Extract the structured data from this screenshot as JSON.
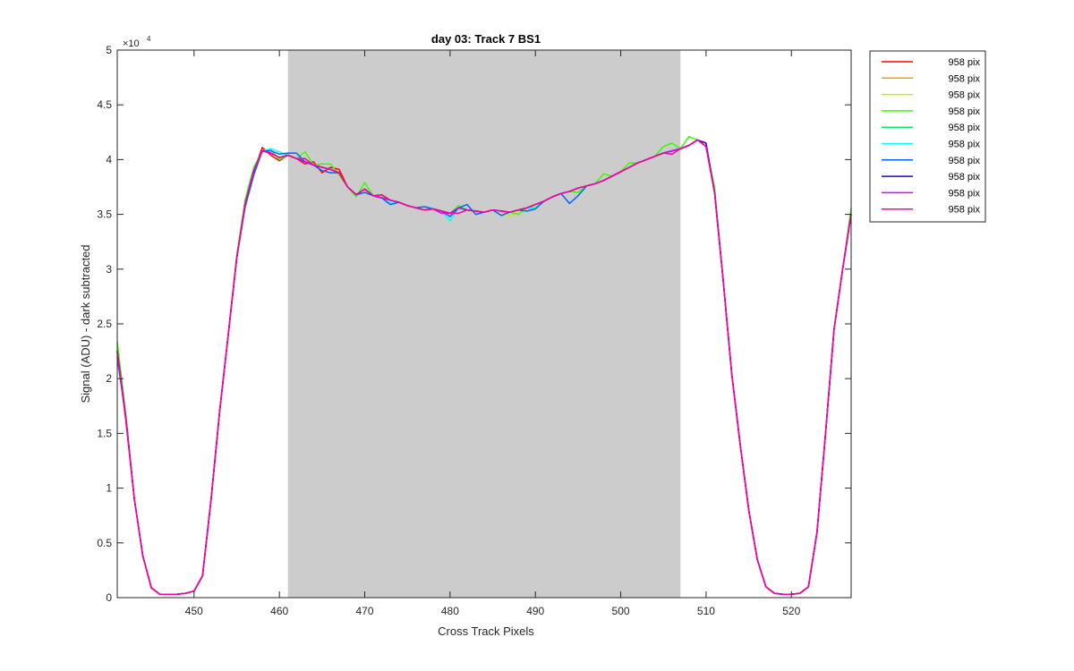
{
  "chart_data": {
    "type": "line",
    "title": "day 03: Track 7  BS1",
    "xlabel": "Cross Track Pixels",
    "ylabel": "Signal (ADU) - dark subtracted",
    "y_exponent_label": "×10",
    "y_exponent_power": "4",
    "xlim": [
      441,
      527
    ],
    "ylim": [
      0,
      50000
    ],
    "x_ticks": [
      450,
      460,
      470,
      480,
      490,
      500,
      510,
      520
    ],
    "y_ticks": [
      0,
      5000,
      10000,
      15000,
      20000,
      25000,
      30000,
      35000,
      40000,
      45000,
      50000
    ],
    "y_tick_labels": [
      "0",
      "0.5",
      "1",
      "1.5",
      "2",
      "2.5",
      "3",
      "3.5",
      "4",
      "4.5",
      "5"
    ],
    "shaded_region": {
      "x": [
        461,
        507
      ],
      "color": "#cccccc"
    },
    "grid": false,
    "legend_position": "outside-top-right",
    "x": [
      441,
      442,
      443,
      444,
      445,
      446,
      447,
      448,
      449,
      450,
      451,
      452,
      453,
      454,
      455,
      456,
      457,
      458,
      459,
      460,
      461,
      462,
      463,
      464,
      465,
      466,
      467,
      468,
      469,
      470,
      471,
      472,
      473,
      474,
      475,
      476,
      477,
      478,
      479,
      480,
      481,
      482,
      483,
      484,
      485,
      486,
      487,
      488,
      489,
      490,
      491,
      492,
      493,
      494,
      495,
      496,
      497,
      498,
      499,
      500,
      501,
      502,
      503,
      504,
      505,
      506,
      507,
      508,
      509,
      510,
      511,
      512,
      513,
      514,
      515,
      516,
      517,
      518,
      519,
      520,
      521,
      522,
      523,
      524,
      525,
      526,
      527
    ],
    "base": [
      22500,
      16500,
      9000,
      3800,
      900,
      300,
      300,
      300,
      400,
      600,
      2000,
      9000,
      17000,
      24000,
      31000,
      36000,
      39000,
      40800,
      40600,
      40200,
      40400,
      40100,
      39800,
      39500,
      39300,
      39100,
      38800,
      37500,
      36800,
      37300,
      36700,
      36500,
      36300,
      36100,
      35800,
      35600,
      35400,
      35500,
      35300,
      35100,
      35600,
      35400,
      35300,
      35200,
      35400,
      35300,
      35200,
      35400,
      35600,
      35900,
      36200,
      36600,
      36900,
      37100,
      37400,
      37600,
      37800,
      38100,
      38500,
      38900,
      39300,
      39700,
      40000,
      40300,
      40600,
      40800,
      41000,
      41300,
      41800,
      41200,
      37000,
      29000,
      20500,
      14000,
      8000,
      3500,
      1000,
      400,
      300,
      300,
      400,
      1000,
      6000,
      15000,
      24500,
      30000,
      35000
    ],
    "series": [
      {
        "name": "958 pix",
        "color": "#ff0000",
        "noise": [
          0,
          -300,
          0,
          0,
          0,
          0,
          0,
          0,
          0,
          0,
          0,
          0,
          0,
          0,
          0,
          0,
          0,
          300,
          -200,
          -300,
          0,
          0,
          -200,
          300,
          -500,
          200,
          300,
          0,
          0,
          0,
          0,
          0,
          0,
          0,
          0,
          0,
          0,
          0,
          0,
          0,
          0,
          0,
          0,
          0,
          0,
          0,
          0,
          0,
          0,
          0,
          0,
          0,
          0,
          0,
          0,
          0,
          0,
          0,
          0,
          0,
          0,
          0,
          0,
          0,
          0,
          0,
          0,
          0,
          0,
          0,
          0,
          0,
          0,
          0,
          0,
          0,
          0,
          0,
          0,
          0,
          0,
          0,
          0,
          0,
          0,
          0,
          0
        ]
      },
      {
        "name": "958 pix",
        "color": "#ff9900",
        "noise": [
          0,
          0,
          0,
          0,
          0,
          0,
          0,
          0,
          0,
          0,
          0,
          0,
          0,
          0,
          0,
          0,
          0,
          0,
          0,
          0,
          0,
          0,
          0,
          0,
          0,
          0,
          0,
          0,
          0,
          0,
          0,
          0,
          0,
          0,
          0,
          0,
          0,
          0,
          0,
          0,
          0,
          0,
          0,
          0,
          0,
          0,
          0,
          0,
          0,
          0,
          0,
          0,
          0,
          0,
          0,
          0,
          0,
          0,
          0,
          0,
          0,
          0,
          0,
          0,
          0,
          0,
          0,
          0,
          0,
          0,
          0,
          0,
          0,
          0,
          0,
          0,
          0,
          0,
          0,
          0,
          0,
          0,
          0,
          0,
          0,
          0,
          0
        ]
      },
      {
        "name": "958 pix",
        "color": "#ccee00",
        "noise": [
          0,
          0,
          0,
          0,
          0,
          0,
          0,
          0,
          0,
          0,
          0,
          0,
          0,
          0,
          0,
          0,
          0,
          0,
          0,
          0,
          0,
          0,
          0,
          0,
          0,
          0,
          0,
          0,
          0,
          0,
          0,
          0,
          0,
          0,
          0,
          0,
          0,
          0,
          0,
          0,
          0,
          0,
          0,
          0,
          0,
          0,
          -400,
          0,
          0,
          0,
          0,
          0,
          0,
          0,
          0,
          0,
          0,
          0,
          0,
          0,
          0,
          0,
          0,
          0,
          0,
          0,
          0,
          0,
          0,
          0,
          0,
          0,
          0,
          0,
          0,
          0,
          0,
          0,
          0,
          0,
          0,
          0,
          0,
          0,
          0,
          0,
          0
        ]
      },
      {
        "name": "958 pix",
        "color": "#33ff00",
        "noise": [
          900,
          300,
          0,
          0,
          0,
          0,
          0,
          0,
          0,
          0,
          0,
          0,
          0,
          0,
          300,
          400,
          300,
          0,
          300,
          -200,
          0,
          0,
          900,
          0,
          300,
          500,
          -200,
          0,
          -200,
          600,
          0,
          200,
          0,
          0,
          0,
          0,
          0,
          0,
          0,
          0,
          200,
          0,
          0,
          0,
          0,
          0,
          0,
          -400,
          0,
          -300,
          0,
          0,
          0,
          0,
          -400,
          0,
          0,
          600,
          0,
          0,
          400,
          0,
          0,
          0,
          600,
          700,
          0,
          800,
          0,
          0,
          500,
          0,
          0,
          0,
          0,
          0,
          0,
          0,
          0,
          0,
          0,
          0,
          0,
          0,
          0,
          0,
          600
        ]
      },
      {
        "name": "958 pix",
        "color": "#00ee66",
        "noise": [
          0,
          0,
          0,
          0,
          0,
          0,
          0,
          0,
          0,
          0,
          0,
          0,
          0,
          0,
          0,
          0,
          0,
          0,
          0,
          0,
          0,
          0,
          0,
          0,
          0,
          0,
          0,
          0,
          0,
          0,
          0,
          0,
          0,
          0,
          0,
          0,
          0,
          0,
          0,
          0,
          0,
          0,
          0,
          0,
          0,
          0,
          0,
          0,
          0,
          0,
          0,
          0,
          0,
          0,
          0,
          0,
          0,
          0,
          0,
          0,
          0,
          0,
          0,
          0,
          0,
          0,
          0,
          0,
          0,
          0,
          0,
          0,
          0,
          0,
          0,
          0,
          0,
          0,
          0,
          0,
          0,
          0,
          0,
          0,
          0,
          0,
          0
        ]
      },
      {
        "name": "958 pix",
        "color": "#00ffff",
        "noise": [
          0,
          0,
          0,
          0,
          0,
          0,
          0,
          0,
          0,
          0,
          0,
          0,
          0,
          0,
          0,
          0,
          0,
          0,
          400,
          500,
          0,
          0,
          0,
          0,
          0,
          0,
          0,
          0,
          0,
          0,
          0,
          0,
          -300,
          0,
          0,
          0,
          0,
          0,
          0,
          -700,
          0,
          0,
          0,
          0,
          0,
          0,
          0,
          0,
          0,
          -400,
          0,
          0,
          0,
          0,
          0,
          0,
          0,
          0,
          0,
          0,
          0,
          0,
          0,
          0,
          0,
          0,
          0,
          0,
          0,
          0,
          0,
          0,
          0,
          0,
          0,
          0,
          0,
          0,
          0,
          0,
          0,
          0,
          0,
          0,
          0,
          0,
          0
        ]
      },
      {
        "name": "958 pix",
        "color": "#0066ff",
        "noise": [
          -600,
          0,
          0,
          0,
          0,
          0,
          0,
          0,
          0,
          0,
          0,
          0,
          0,
          0,
          0,
          -300,
          -400,
          0,
          200,
          300,
          200,
          500,
          0,
          0,
          -300,
          -300,
          0,
          0,
          0,
          -300,
          0,
          0,
          -400,
          0,
          0,
          0,
          300,
          0,
          0,
          -300,
          0,
          500,
          -300,
          0,
          0,
          -400,
          0,
          0,
          -300,
          -400,
          0,
          0,
          0,
          -1100,
          -700,
          0,
          0,
          0,
          0,
          0,
          0,
          0,
          0,
          0,
          0,
          0,
          0,
          0,
          0,
          0,
          0,
          0,
          0,
          0,
          0,
          0,
          0,
          0,
          0,
          0,
          0,
          0,
          0,
          0,
          0,
          0,
          0
        ]
      },
      {
        "name": "958 pix",
        "color": "#2200cc",
        "noise": [
          0,
          0,
          0,
          0,
          0,
          0,
          0,
          0,
          0,
          0,
          0,
          0,
          0,
          0,
          0,
          0,
          0,
          0,
          0,
          0,
          0,
          0,
          0,
          0,
          0,
          0,
          0,
          0,
          0,
          0,
          0,
          0,
          0,
          0,
          0,
          0,
          0,
          0,
          0,
          0,
          0,
          0,
          0,
          0,
          0,
          0,
          0,
          0,
          0,
          0,
          0,
          0,
          0,
          0,
          0,
          0,
          0,
          0,
          0,
          0,
          0,
          0,
          0,
          0,
          0,
          0,
          0,
          0,
          0,
          300,
          0,
          0,
          0,
          0,
          0,
          0,
          0,
          0,
          0,
          0,
          0,
          0,
          0,
          0,
          0,
          0,
          0
        ]
      },
      {
        "name": "958 pix",
        "color": "#dd00ff",
        "noise": [
          0,
          0,
          0,
          0,
          0,
          0,
          0,
          0,
          0,
          0,
          0,
          0,
          0,
          0,
          0,
          0,
          0,
          0,
          0,
          0,
          0,
          0,
          0,
          0,
          0,
          0,
          0,
          0,
          0,
          0,
          0,
          0,
          0,
          0,
          0,
          0,
          0,
          0,
          -200,
          0,
          0,
          0,
          0,
          0,
          0,
          0,
          0,
          0,
          0,
          0,
          0,
          0,
          0,
          0,
          0,
          0,
          0,
          0,
          0,
          0,
          0,
          0,
          0,
          0,
          0,
          0,
          0,
          0,
          0,
          0,
          0,
          0,
          0,
          0,
          0,
          0,
          0,
          0,
          0,
          0,
          0,
          0,
          0,
          0,
          0,
          0,
          0
        ]
      },
      {
        "name": "958 pix",
        "color": "#ff0099",
        "noise": [
          0,
          0,
          0,
          0,
          0,
          0,
          0,
          0,
          0,
          0,
          0,
          0,
          0,
          0,
          0,
          0,
          0,
          0,
          0,
          0,
          0,
          0,
          300,
          0,
          0,
          0,
          0,
          0,
          0,
          0,
          0,
          300,
          0,
          0,
          0,
          0,
          0,
          0,
          0,
          0,
          -500,
          0,
          0,
          0,
          0,
          0,
          0,
          0,
          0,
          0,
          0,
          0,
          0,
          0,
          0,
          0,
          0,
          0,
          0,
          0,
          0,
          0,
          0,
          0,
          0,
          -300,
          0,
          0,
          0,
          0,
          0,
          0,
          0,
          0,
          0,
          0,
          0,
          0,
          0,
          0,
          0,
          0,
          0,
          0,
          0,
          0,
          0
        ]
      }
    ]
  }
}
